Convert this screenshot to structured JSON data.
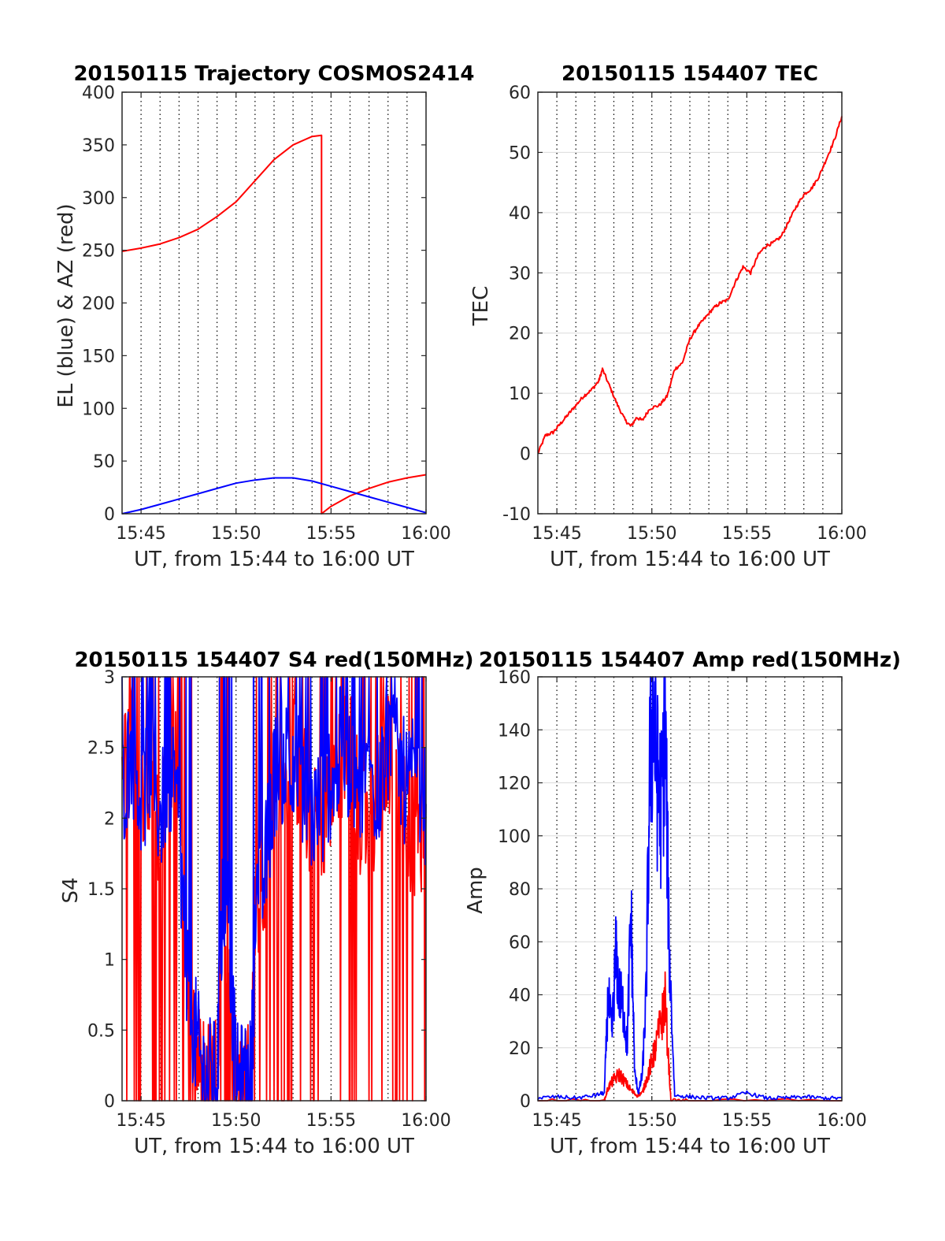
{
  "colors": {
    "red": "#ff0000",
    "blue": "#0000ff",
    "axis": "#262626",
    "grid": "#000000"
  },
  "charts": [
    {
      "key": "traj",
      "title": "20150115 Trajectory COSMOS2414",
      "xlabel": "UT, from 15:44 to 16:00 UT",
      "ylabel": "EL (blue) & AZ (red)",
      "x_ticks": [
        "15:45",
        "15:50",
        "15:55",
        "16:00"
      ],
      "y_ticks": [
        "0",
        "50",
        "100",
        "150",
        "200",
        "250",
        "300",
        "350",
        "400"
      ]
    },
    {
      "key": "tec",
      "title": "20150115 154407 TEC",
      "xlabel": "UT, from 15:44 to 16:00 UT",
      "ylabel": "TEC",
      "x_ticks": [
        "15:45",
        "15:50",
        "15:55",
        "16:00"
      ],
      "y_ticks": [
        "-10",
        "0",
        "10",
        "20",
        "30",
        "40",
        "50",
        "60"
      ]
    },
    {
      "key": "s4",
      "title": "20150115 154407 S4 red(150MHz)",
      "xlabel": "UT, from 15:44 to 16:00 UT",
      "ylabel": "S4",
      "x_ticks": [
        "15:45",
        "15:50",
        "15:55",
        "16:00"
      ],
      "y_ticks": [
        "0",
        "0.5",
        "1",
        "1.5",
        "2",
        "2.5",
        "3"
      ]
    },
    {
      "key": "amp",
      "title": "20150115 154407 Amp red(150MHz)",
      "xlabel": "UT, from 15:44 to 16:00 UT",
      "ylabel": "Amp",
      "x_ticks": [
        "15:45",
        "15:50",
        "15:55",
        "16:00"
      ],
      "y_ticks": [
        "0",
        "20",
        "40",
        "60",
        "80",
        "100",
        "120",
        "140",
        "160"
      ]
    }
  ],
  "chart_data": [
    {
      "type": "line",
      "title": "20150115 Trajectory COSMOS2414",
      "xlabel": "UT, from 15:44 to 16:00 UT",
      "ylabel": "EL (blue) & AZ (red)",
      "xlim": [
        "15:44",
        "16:00"
      ],
      "ylim": [
        0,
        400
      ],
      "grid": "x-dotted",
      "series": [
        {
          "color": "red",
          "x": [
            "15:44",
            "15:45",
            "15:46",
            "15:47",
            "15:48",
            "15:49",
            "15:50",
            "15:51",
            "15:52",
            "15:53",
            "15:54",
            "15:54.5",
            "15:54.5",
            "15:55",
            "15:56",
            "15:57",
            "15:58",
            "15:59",
            "16:00"
          ],
          "values": [
            249,
            252,
            256,
            262,
            270,
            282,
            296,
            316,
            336,
            350,
            358,
            359,
            0,
            7,
            17,
            24,
            30,
            34,
            37
          ]
        },
        {
          "color": "blue",
          "x": [
            "15:44",
            "15:45",
            "15:46",
            "15:47",
            "15:48",
            "15:49",
            "15:50",
            "15:51",
            "15:52",
            "15:52.5",
            "15:53",
            "15:54",
            "15:55",
            "15:56",
            "15:57",
            "15:58",
            "15:59",
            "16:00"
          ],
          "values": [
            0,
            4,
            9,
            14,
            19,
            24,
            29,
            32,
            34,
            34,
            34,
            31,
            26,
            21,
            16,
            11,
            6,
            1
          ]
        }
      ]
    },
    {
      "type": "line",
      "title": "20150115 154407 TEC",
      "xlabel": "UT, from 15:44 to 16:00 UT",
      "ylabel": "TEC",
      "xlim": [
        "15:44",
        "16:00"
      ],
      "ylim": [
        -10,
        60
      ],
      "grid": "x-dotted, y-solid",
      "series": [
        {
          "color": "red",
          "x": [
            "15:44",
            "15:44.4",
            "15:44.8",
            "15:45.2",
            "15:45.6",
            "15:46",
            "15:46.4",
            "15:46.8",
            "15:47.2",
            "15:47.4",
            "15:47.8",
            "15:48.2",
            "15:48.6",
            "15:48.9",
            "15:49.2",
            "15:49.5",
            "15:49.9",
            "15:50.4",
            "15:50.8",
            "15:51.2",
            "15:51.6",
            "15:52",
            "15:52.4",
            "15:52.8",
            "15:53.2",
            "15:53.6",
            "15:54",
            "15:54.4",
            "15:54.8",
            "15:55.2",
            "15:55.6",
            "15:56",
            "15:56.4",
            "15:56.8",
            "15:57.2",
            "15:57.6",
            "15:58",
            "15:58.4",
            "15:58.8",
            "15:59.2",
            "15:59.6",
            "16:00"
          ],
          "values": [
            0,
            3,
            3.5,
            5,
            6.5,
            8,
            9.5,
            10.5,
            12,
            14,
            11,
            8,
            5.5,
            4.5,
            6,
            5.5,
            7.5,
            8,
            9.5,
            14,
            15,
            19,
            21,
            22.5,
            24,
            25,
            25.5,
            28.5,
            31,
            30,
            33,
            34.5,
            35,
            36,
            38.5,
            41,
            43,
            44,
            46,
            49,
            52,
            56
          ]
        }
      ]
    },
    {
      "type": "line",
      "title": "20150115 154407 S4 red(150MHz)",
      "xlabel": "UT, from 15:44 to 16:00 UT",
      "ylabel": "S4",
      "xlim": [
        "15:44",
        "16:00"
      ],
      "ylim": [
        0,
        3
      ],
      "grid": "x-dotted",
      "series": [
        {
          "color": "red",
          "x": [
            "15:44",
            "15:44.5",
            "15:45",
            "15:45.5",
            "15:46",
            "15:46.5",
            "15:47",
            "15:47.4",
            "15:47.8",
            "15:48.2",
            "15:48.6",
            "15:49",
            "15:49.3",
            "15:49.6",
            "15:50",
            "15:50.4",
            "15:50.8",
            "15:51",
            "15:51.5",
            "15:52",
            "15:52.5",
            "15:53",
            "15:53.5",
            "15:54",
            "15:54.5",
            "15:55",
            "15:55.5",
            "15:56",
            "15:56.5",
            "15:57",
            "15:57.5",
            "15:58",
            "15:58.5",
            "15:59",
            "15:59.5",
            "16:00"
          ],
          "values": [
            2.3,
            2.6,
            2.0,
            2.4,
            1.9,
            2.3,
            2.6,
            0.9,
            0.3,
            0.2,
            0.15,
            0.15,
            1.2,
            1.0,
            0.15,
            0.18,
            0.2,
            1.3,
            1.5,
            2.2,
            2.1,
            2.4,
            2.3,
            1.9,
            2.0,
            2.2,
            2.4,
            2.6,
            2.0,
            1.8,
            2.2,
            2.5,
            2.2,
            2.0,
            1.8,
            2.0
          ]
        },
        {
          "color": "blue",
          "x": [
            "15:44",
            "15:44.5",
            "15:45",
            "15:45.5",
            "15:46",
            "15:46.5",
            "15:47",
            "15:47.4",
            "15:47.8",
            "15:48.2",
            "15:48.6",
            "15:49",
            "15:49.3",
            "15:49.6",
            "15:50",
            "15:50.4",
            "15:50.8",
            "15:51",
            "15:51.5",
            "15:52",
            "15:52.5",
            "15:53",
            "15:53.5",
            "15:54",
            "15:54.5",
            "15:55",
            "15:55.5",
            "15:56",
            "15:56.5",
            "15:57",
            "15:57.5",
            "15:58",
            "15:58.5",
            "15:59",
            "15:59.5",
            "16:00"
          ],
          "values": [
            2.2,
            2.5,
            2.1,
            2.4,
            2.0,
            2.3,
            2.0,
            0.8,
            0.5,
            0.2,
            0.15,
            0.15,
            1.5,
            1.3,
            0.1,
            0.12,
            0.15,
            1.2,
            1.6,
            2.3,
            2.4,
            2.5,
            2.2,
            2.0,
            2.1,
            2.3,
            2.5,
            2.4,
            2.2,
            2.3,
            2.2,
            2.5,
            2.4,
            2.2,
            2.3,
            2.1
          ]
        }
      ]
    },
    {
      "type": "line",
      "title": "20150115 154407 Amp red(150MHz)",
      "xlabel": "UT, from 15:44 to 16:00 UT",
      "ylabel": "Amp",
      "xlim": [
        "15:44",
        "16:00"
      ],
      "ylim": [
        0,
        160
      ],
      "grid": "x-dotted, y-solid",
      "series": [
        {
          "color": "red",
          "x": [
            "15:44",
            "15:47.5",
            "15:47.7",
            "15:48",
            "15:48.3",
            "15:48.6",
            "15:48.9",
            "15:49.2",
            "15:49.5",
            "15:49.8",
            "15:50",
            "15:50.2",
            "15:50.5",
            "15:50.7",
            "15:51",
            "15:52",
            "16:00"
          ],
          "values": [
            0,
            0,
            5,
            8,
            10,
            7,
            4,
            2,
            3,
            10,
            15,
            20,
            30,
            38,
            0,
            0,
            0
          ]
        },
        {
          "color": "blue",
          "x": [
            "15:44",
            "15:45",
            "15:46",
            "15:47",
            "15:47.5",
            "15:47.7",
            "15:47.9",
            "15:48.1",
            "15:48.3",
            "15:48.5",
            "15:48.7",
            "15:48.9",
            "15:49.1",
            "15:49.3",
            "15:49.5",
            "15:49.7",
            "15:49.9",
            "15:50.1",
            "15:50.3",
            "15:50.5",
            "15:50.7",
            "15:50.9",
            "15:51.2",
            "15:52",
            "15:53",
            "15:54",
            "15:55",
            "15:56",
            "15:57",
            "15:58",
            "15:59",
            "16:00"
          ],
          "values": [
            1,
            1.5,
            1,
            2,
            3,
            40,
            25,
            55,
            40,
            35,
            20,
            72,
            10,
            3,
            10,
            40,
            130,
            150,
            120,
            110,
            145,
            60,
            2,
            1.5,
            1,
            1,
            3,
            1,
            1,
            1.5,
            1,
            1
          ]
        }
      ]
    }
  ]
}
